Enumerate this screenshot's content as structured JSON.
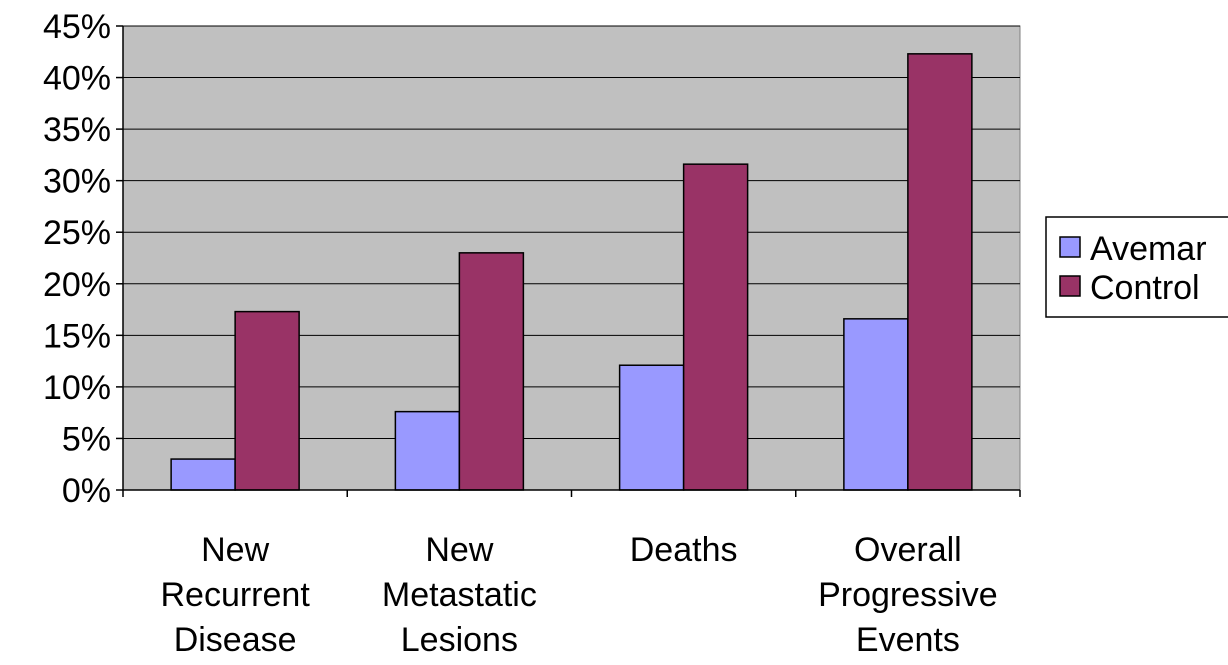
{
  "chart_data": {
    "type": "bar",
    "title": "",
    "xlabel": "",
    "ylabel": "",
    "categories": [
      [
        "New",
        "Recurrent",
        "Disease"
      ],
      [
        "New",
        "Metastatic",
        "Lesions"
      ],
      [
        "Deaths"
      ],
      [
        "Overall",
        "Progressive",
        "Events"
      ]
    ],
    "series": [
      {
        "name": "Avemar",
        "values": [
          3.0,
          7.6,
          12.1,
          16.6
        ],
        "color": "#9999ff"
      },
      {
        "name": "Control",
        "values": [
          17.3,
          23.0,
          31.6,
          42.3
        ],
        "color": "#993366"
      }
    ],
    "ylim": [
      0,
      45
    ],
    "yticks": [
      0,
      5,
      10,
      15,
      20,
      25,
      30,
      35,
      40,
      45
    ],
    "ytick_labels": [
      "0%",
      "5%",
      "10%",
      "15%",
      "20%",
      "25%",
      "30%",
      "35%",
      "40%",
      "45%"
    ],
    "plot_background": "#c0c0c0",
    "grid": true,
    "legend_position": "right"
  }
}
